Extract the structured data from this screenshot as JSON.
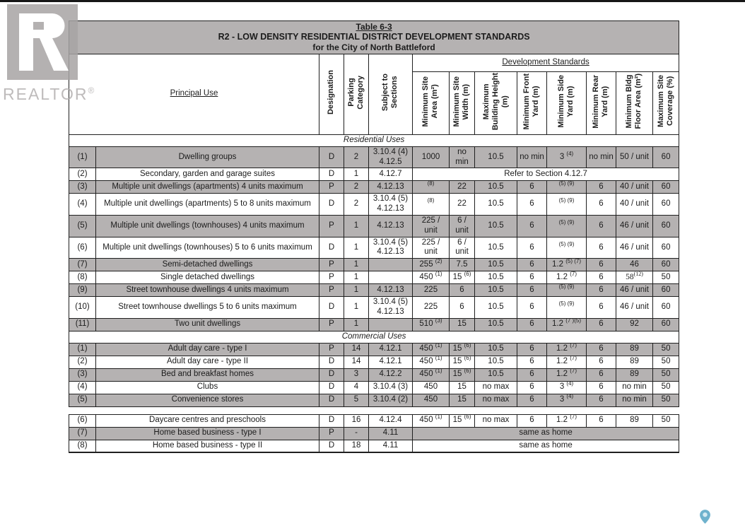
{
  "colors": {
    "row_shade": "#b5b2b2",
    "border_color": "#1f1f1f",
    "logo_gray": "#a7a4a4",
    "pin_fill": "#6fb2cd",
    "pin_center": "#d5eaf2"
  },
  "logo": {
    "icon": "realtor-r-logo",
    "text": "REALTOR",
    "reg": "®"
  },
  "map_pin": {
    "icon": "map-pin-icon"
  },
  "table": {
    "title": {
      "line1": "Table 6-3",
      "line2": "R2 - LOW DENSITY RESIDENTIAL DISTRICT DEVELOPMENT STANDARDS",
      "line3": "for the City of North Battleford"
    },
    "header": {
      "principal_use": "Principal Use",
      "dev_standards": "Development Standards",
      "left_columns": [
        "Designation",
        "Parking\nCategory",
        "Subject to\nSections"
      ],
      "dev_columns": [
        "Minimum Site\nArea (m²)",
        "Minimum Site\nWidth (m)",
        "Maximum\nBuilding Height\n(m)",
        "Minimum Front\nYard (m)",
        "Minimum Side\nYard (m)",
        "Minimum Rear\nYard (m)",
        "Minimum Bldg\nFloor Area (m²)",
        "Maximum Site\nCoverage (%)"
      ]
    },
    "sections": [
      {
        "label": "Residential Uses",
        "rows": [
          {
            "num": "(1)",
            "use": "Dwelling groups",
            "designation": "D",
            "parking": "2",
            "sections": "3.10.4 (4)\n4.12.5",
            "values": [
              "1000",
              "no\nmin",
              "10.5",
              "no min",
              "3 ^(4)^",
              "no min",
              "50 / unit",
              "60"
            ],
            "shade": true
          },
          {
            "num": "(2)",
            "use": "Secondary, garden and garage suites",
            "designation": "D",
            "parking": "1",
            "sections": "4.12.7",
            "span": "Refer to Section 4.12.7",
            "shade": false
          },
          {
            "num": "(3)",
            "use": "Multiple unit dwellings (apartments) 4 units maximum",
            "designation": "P",
            "parking": "2",
            "sections": "4.12.13",
            "values": [
              "^(8)^",
              "22",
              "10.5",
              "6",
              "^(5) (9)^",
              "6",
              "40 / unit",
              "60"
            ],
            "shade": true
          },
          {
            "num": "(4)",
            "use": "Multiple unit dwellings (apartments) 5 to 8 units maximum",
            "designation": "D",
            "parking": "2",
            "sections": "3.10.4 (5)\n4.12.13",
            "values": [
              "^(8)^",
              "22",
              "10.5",
              "6",
              "^(5) (9)^",
              "6",
              "40 / unit",
              "60"
            ],
            "shade": false
          },
          {
            "num": "(5)",
            "use": "Multiple unit dwellings (townhouses) 4 units maximum",
            "designation": "P",
            "parking": "1",
            "sections": "4.12.13",
            "values": [
              "225 /\nunit",
              "6 /\nunit",
              "10.5",
              "6",
              "^(5) (9)^",
              "6",
              "46 / unit",
              "60"
            ],
            "shade": true
          },
          {
            "num": "(6)",
            "use": "Multiple unit dwellings (townhouses) 5 to 6 units maximum",
            "designation": "D",
            "parking": "1",
            "sections": "3.10.4 (5)\n4.12.13",
            "values": [
              "225 /\nunit",
              "6 /\nunit",
              "10.5",
              "6",
              "^(5) (9)^",
              "6",
              "46 / unit",
              "60"
            ],
            "shade": false
          },
          {
            "num": "(7)",
            "use": "Semi-detached dwellings",
            "designation": "P",
            "parking": "1",
            "sections": "",
            "values": [
              "255 ^(2)^",
              "7.5",
              "10.5",
              "6",
              "1.2 ^(5) (7)^",
              "6",
              "46",
              "60"
            ],
            "shade": true
          },
          {
            "num": "(8)",
            "use": "Single detached dwellings",
            "designation": "P",
            "parking": "1",
            "sections": "",
            "values": [
              "450 ^(1)^",
              "15 ^(6)^",
              "10.5",
              "6",
              "1.2 ^(7)^",
              "6",
              "58^(12)^",
              "50"
            ],
            "serif_cols": [
              6
            ],
            "shade": false
          },
          {
            "num": "(9)",
            "use": "Street townhouse dwellings 4 units maximum",
            "designation": "P",
            "parking": "1",
            "sections": "4.12.13",
            "values": [
              "225",
              "6",
              "10.5",
              "6",
              "^(5) (9)^",
              "6",
              "46 / unit",
              "60"
            ],
            "shade": true
          },
          {
            "num": "(10)",
            "use": "Street townhouse dwellings 5 to 6 units maximum",
            "designation": "D",
            "parking": "1",
            "sections": "3.10.4 (5)\n4.12.13",
            "values": [
              "225",
              "6",
              "10.5",
              "6",
              "^(5) (9)^",
              "6",
              "46 / unit",
              "60"
            ],
            "shade": false
          },
          {
            "num": "(11)",
            "use": "Two unit dwellings",
            "designation": "P",
            "parking": "1",
            "sections": "",
            "values": [
              "510 ^(3)^",
              "15",
              "10.5",
              "6",
              "1.2 ^(7 )(5)^",
              "6",
              "92",
              "60"
            ],
            "shade": true
          }
        ]
      },
      {
        "label": "Commercial Uses",
        "rows": [
          {
            "num": "(1)",
            "use": "Adult day care - type I",
            "designation": "P",
            "parking": "14",
            "sections": "4.12.1",
            "values": [
              "450 ^(1)^",
              "15 ^(6)^",
              "10.5",
              "6",
              "1.2 ^(7)^",
              "6",
              "89",
              "50"
            ],
            "shade": true
          },
          {
            "num": "(2)",
            "use": "Adult day care - type II",
            "designation": "D",
            "parking": "14",
            "sections": "4.12.1",
            "values": [
              "450 ^(1)^",
              "15 ^(6)^",
              "10.5",
              "6",
              "1.2 ^(7)^",
              "6",
              "89",
              "50"
            ],
            "shade": false
          },
          {
            "num": "(3)",
            "use": "Bed and breakfast homes",
            "designation": "D",
            "parking": "3",
            "sections": "4.12.2",
            "values": [
              "450 ^(1)^",
              "15 ^(6)^",
              "10.5",
              "6",
              "1.2 ^(7)^",
              "6",
              "89",
              "50"
            ],
            "shade": true
          },
          {
            "num": "(4)",
            "use": "Clubs",
            "designation": "D",
            "parking": "4",
            "sections": "3.10.4 (3)",
            "values": [
              "450",
              "15",
              "no max",
              "6",
              "3 ^(4)^",
              "6",
              "no min",
              "50"
            ],
            "shade": false
          },
          {
            "num": "(5)",
            "use": "Convenience stores",
            "designation": "D",
            "parking": "5",
            "sections": "3.10.4 (2)",
            "values": [
              "450",
              "15",
              "no max",
              "6",
              "3 ^(4)^",
              "6",
              "no min",
              "50"
            ],
            "shade": true
          },
          {
            "spacer": true
          },
          {
            "num": "(6)",
            "use": "Daycare centres and preschools",
            "designation": "D",
            "parking": "16",
            "sections": "4.12.4",
            "values": [
              "450 ^(1)^",
              "15 ^(6)^",
              "no max",
              "6",
              "1.2 ^(7)^",
              "6",
              "89",
              "50"
            ],
            "shade": false
          },
          {
            "num": "(7)",
            "use": "Home based business - type I",
            "designation": "P",
            "parking": "-",
            "sections": "4.11",
            "span": "same as home",
            "shade": true
          },
          {
            "num": "(8)",
            "use": "Home based business - type II",
            "designation": "D",
            "parking": "18",
            "sections": "4.11",
            "span": "same as home",
            "shade": false
          }
        ]
      }
    ]
  }
}
